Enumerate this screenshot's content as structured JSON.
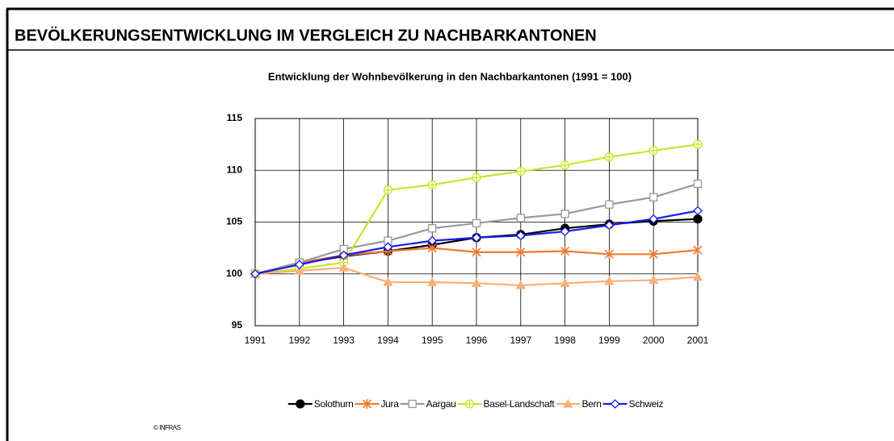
{
  "header": "BEVÖLKERUNGSENTWICKLUNG IM VERGLEICH ZU NACHBARKANTONEN",
  "credit": "© INFRAS",
  "chart_data": {
    "type": "line",
    "title": "Entwicklung der Wohnbevölkerung in den Nachbarkantonen (1991 = 100)",
    "categories": [
      "1991",
      "1992",
      "1993",
      "1994",
      "1995",
      "1996",
      "1997",
      "1998",
      "1999",
      "2000",
      "2001"
    ],
    "ylim": [
      95,
      115
    ],
    "yticks": [
      95,
      100,
      105,
      110,
      115
    ],
    "grid": true,
    "legend": "bottom",
    "series": [
      {
        "name": "Solothurn",
        "color": "#000000",
        "marker": "filled-circle",
        "values": [
          100,
          101.0,
          101.7,
          102.2,
          102.8,
          103.5,
          103.8,
          104.4,
          104.8,
          105.1,
          105.3
        ]
      },
      {
        "name": "Jura",
        "color": "#f07830",
        "marker": "asterisk",
        "values": [
          100,
          101.1,
          101.8,
          102.2,
          102.5,
          102.1,
          102.1,
          102.2,
          101.9,
          101.9,
          102.3
        ]
      },
      {
        "name": "Aargau",
        "color": "#999999",
        "marker": "open-square",
        "values": [
          100,
          101.1,
          102.4,
          103.2,
          104.4,
          104.9,
          105.4,
          105.8,
          106.7,
          107.4,
          108.7
        ]
      },
      {
        "name": "Basel-Landschaft",
        "color": "#c8e628",
        "marker": "crossed-circle",
        "values": [
          100,
          100.5,
          101.1,
          108.1,
          108.6,
          109.3,
          109.9,
          110.5,
          111.3,
          111.9,
          112.5
        ]
      },
      {
        "name": "Bern",
        "color": "#f8b07a",
        "marker": "filled-triangle",
        "values": [
          100,
          100.3,
          100.6,
          99.2,
          99.2,
          99.1,
          98.9,
          99.1,
          99.3,
          99.4,
          99.7
        ]
      },
      {
        "name": "Schweiz",
        "color": "#1a1ae6",
        "marker": "open-diamond",
        "values": [
          100,
          100.9,
          101.8,
          102.6,
          103.2,
          103.5,
          103.7,
          104.1,
          104.7,
          105.3,
          106.1
        ]
      }
    ]
  }
}
